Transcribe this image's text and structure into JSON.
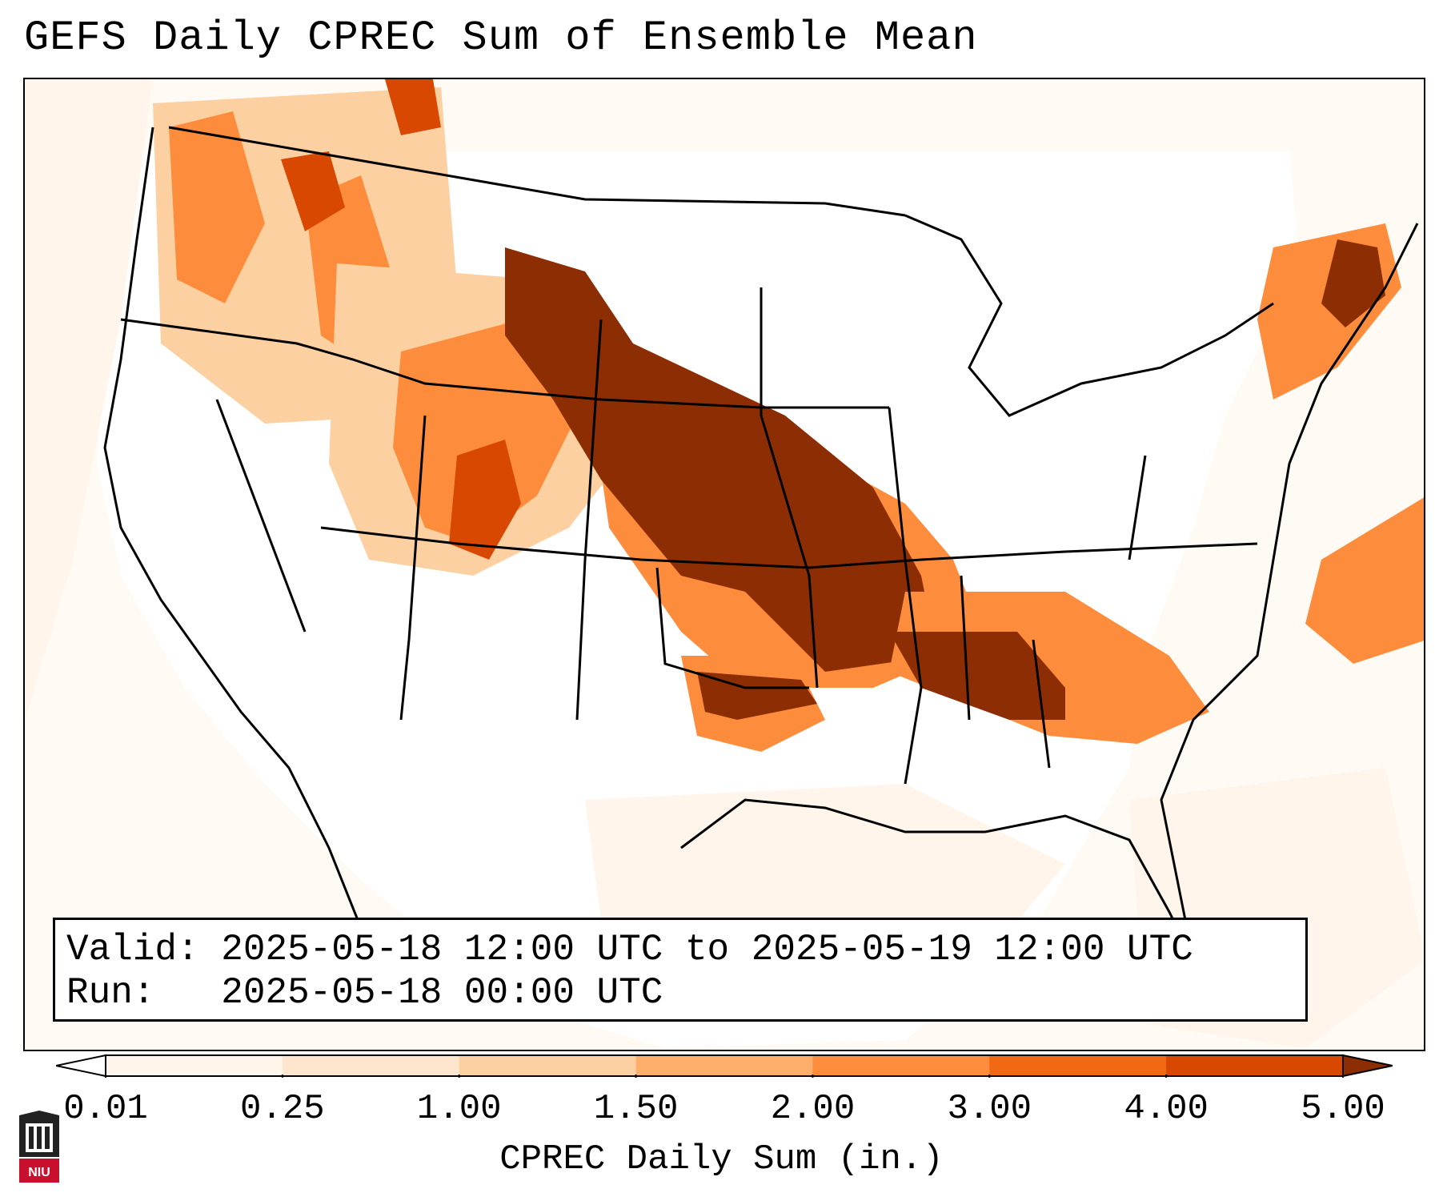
{
  "title": "GEFS Daily CPREC Sum of Ensemble Mean",
  "info": {
    "valid_label": "Valid:",
    "valid_value": "2025-05-18 12:00 UTC to 2025-05-19 12:00 UTC",
    "run_label": "Run:",
    "run_value": "2025-05-18 00:00 UTC"
  },
  "colorbar": {
    "title": "CPREC Daily Sum (in.)",
    "tick_labels": [
      "0.01",
      "0.25",
      "1.00",
      "1.50",
      "2.00",
      "3.00",
      "4.00",
      "5.00"
    ],
    "colors": [
      "#fff5eb",
      "#fee6ce",
      "#fdd0a2",
      "#fdae6b",
      "#fd8d3c",
      "#f16913",
      "#d94801",
      "#8c2d04"
    ],
    "under_color": "#ffffff",
    "over_color": "#8c2d04"
  },
  "map": {
    "field_colors": {
      "light": "#fff5eb",
      "mid": "#fdd0a2",
      "orange": "#fd8d3c",
      "dark_orange": "#d94801",
      "max": "#8c2d04"
    }
  },
  "logo": {
    "text": "NIU",
    "color": "#c8102e"
  }
}
